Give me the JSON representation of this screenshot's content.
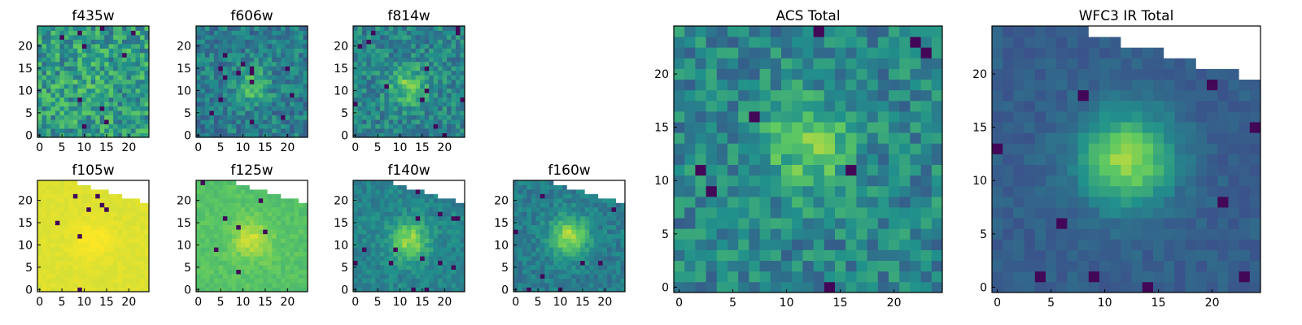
{
  "figure": {
    "background": "#ffffff"
  },
  "colormap": [
    "#440154",
    "#3b528b",
    "#21918c",
    "#5ec962",
    "#fde725"
  ],
  "chart_data": [
    {
      "type": "heatmap",
      "title": "f435w",
      "grid_size": 25,
      "xlim": [
        0,
        25
      ],
      "ylim": [
        0,
        25
      ],
      "xticks": [
        0,
        5,
        10,
        15,
        20
      ],
      "yticks": [
        0,
        5,
        10,
        15,
        20
      ],
      "grid": false,
      "peak": [
        12,
        11
      ],
      "spread": 0.05,
      "noise": 0.42,
      "base": 0.55,
      "seed": 11
    },
    {
      "type": "heatmap",
      "title": "f606w",
      "grid_size": 25,
      "xlim": [
        0,
        25
      ],
      "ylim": [
        0,
        25
      ],
      "xticks": [
        0,
        5,
        10,
        15,
        20
      ],
      "yticks": [
        0,
        5,
        10,
        15,
        20
      ],
      "grid": false,
      "peak": [
        12,
        11
      ],
      "spread": 0.25,
      "noise": 0.3,
      "base": 0.42,
      "seed": 23
    },
    {
      "type": "heatmap",
      "title": "f814w",
      "grid_size": 25,
      "xlim": [
        0,
        25
      ],
      "ylim": [
        0,
        25
      ],
      "xticks": [
        0,
        5,
        10,
        15,
        20
      ],
      "yticks": [
        0,
        5,
        10,
        15,
        20
      ],
      "grid": false,
      "peak": [
        12,
        11
      ],
      "spread": 0.3,
      "noise": 0.3,
      "base": 0.45,
      "seed": 37
    },
    {
      "type": "heatmap",
      "title": "f105w",
      "grid_size": 25,
      "xlim": [
        0,
        25
      ],
      "ylim": [
        0,
        25
      ],
      "xticks": [
        0,
        5,
        10,
        15,
        20
      ],
      "yticks": [
        0,
        5,
        10,
        15,
        20
      ],
      "grid": false,
      "peak": [
        12,
        11
      ],
      "spread": 0.05,
      "noise": 0.03,
      "base": 0.95,
      "seed": 41,
      "masked_corner": "top-right"
    },
    {
      "type": "heatmap",
      "title": "f125w",
      "grid_size": 25,
      "xlim": [
        0,
        25
      ],
      "ylim": [
        0,
        25
      ],
      "xticks": [
        0,
        5,
        10,
        15,
        20
      ],
      "yticks": [
        0,
        5,
        10,
        15,
        20
      ],
      "grid": false,
      "peak": [
        12,
        11
      ],
      "spread": 0.2,
      "noise": 0.1,
      "base": 0.72,
      "seed": 53,
      "masked_corner": "top-right"
    },
    {
      "type": "heatmap",
      "title": "f140w",
      "grid_size": 25,
      "xlim": [
        0,
        25
      ],
      "ylim": [
        0,
        25
      ],
      "xticks": [
        0,
        5,
        10,
        15,
        20
      ],
      "yticks": [
        0,
        5,
        10,
        15,
        20
      ],
      "grid": false,
      "peak": [
        12,
        11
      ],
      "spread": 0.4,
      "noise": 0.16,
      "base": 0.45,
      "seed": 67,
      "masked_corner": "top-right"
    },
    {
      "type": "heatmap",
      "title": "f160w",
      "grid_size": 25,
      "xlim": [
        0,
        25
      ],
      "ylim": [
        0,
        25
      ],
      "xticks": [
        0,
        5,
        10,
        15,
        20
      ],
      "yticks": [
        0,
        5,
        10,
        15,
        20
      ],
      "grid": false,
      "peak": [
        12,
        12
      ],
      "spread": 0.45,
      "noise": 0.18,
      "base": 0.42,
      "seed": 79,
      "masked_corner": "top-right"
    },
    {
      "type": "heatmap",
      "title": "ACS Total",
      "grid_size": 25,
      "xlim": [
        0,
        25
      ],
      "ylim": [
        0,
        25
      ],
      "xticks": [
        0,
        5,
        10,
        15,
        20
      ],
      "yticks": [
        0,
        5,
        10,
        15,
        20
      ],
      "grid": false,
      "peak": [
        12,
        13
      ],
      "spread": 0.3,
      "noise": 0.32,
      "base": 0.45,
      "seed": 97
    },
    {
      "type": "heatmap",
      "title": "WFC3 IR Total",
      "grid_size": 25,
      "xlim": [
        0,
        25
      ],
      "ylim": [
        0,
        25
      ],
      "xticks": [
        0,
        5,
        10,
        15,
        20
      ],
      "yticks": [
        0,
        5,
        10,
        15,
        20
      ],
      "grid": false,
      "peak": [
        12,
        12
      ],
      "spread": 0.55,
      "noise": 0.1,
      "base": 0.3,
      "seed": 131,
      "masked_corner": "top-right"
    }
  ]
}
